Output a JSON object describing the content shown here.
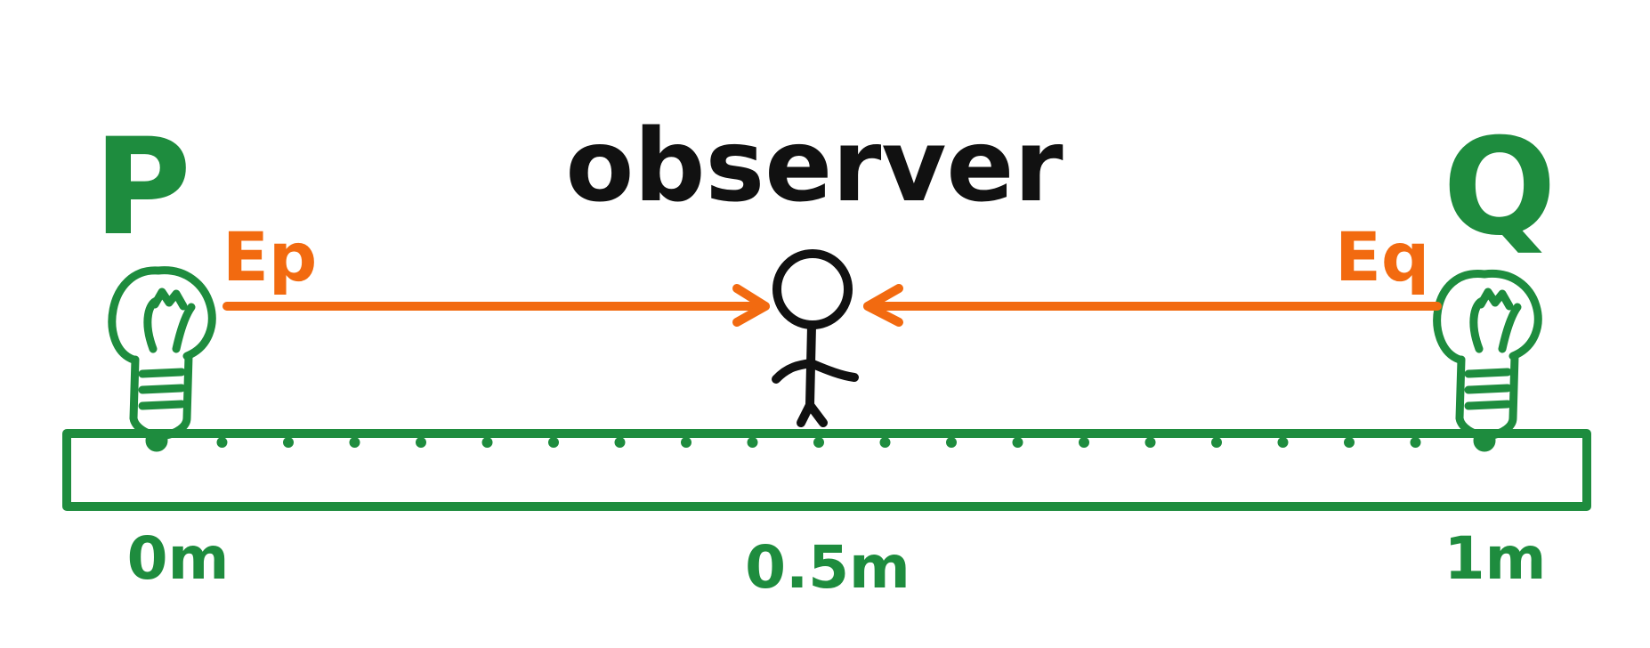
{
  "title": "observer",
  "sources": [
    {
      "id": "P",
      "label": "P",
      "field_label": "Ep"
    },
    {
      "id": "Q",
      "label": "Q",
      "field_label": "Eq"
    }
  ],
  "ruler": {
    "labels": [
      "0m",
      "0.5m",
      "1m"
    ]
  },
  "colors": {
    "green": "#1e8c3e",
    "orange": "#f26a10",
    "black": "#111111"
  },
  "icons": [
    "lightbulb-icon",
    "lightbulb-icon",
    "stick-figure-icon"
  ]
}
